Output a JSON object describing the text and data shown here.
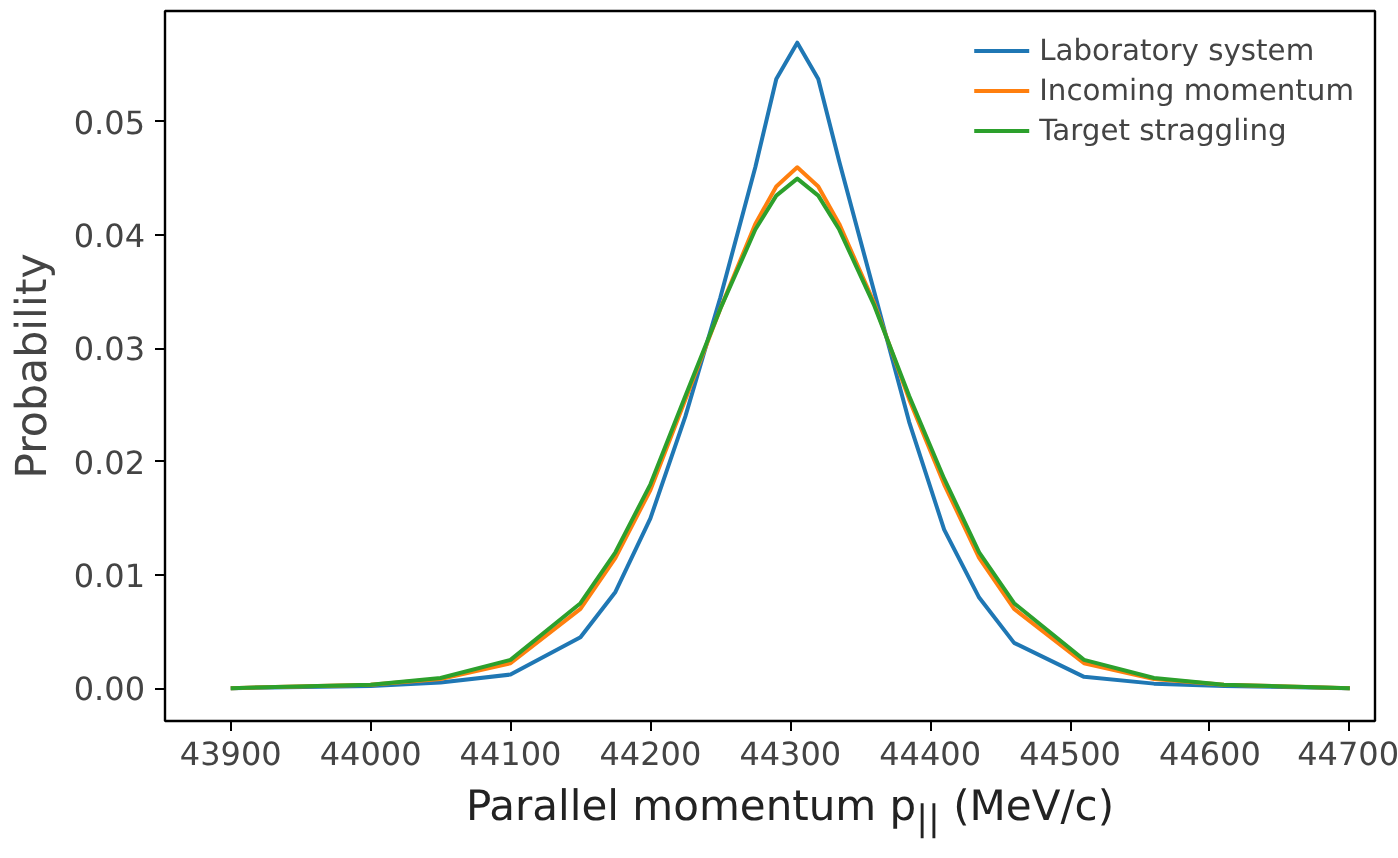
{
  "chart_data": {
    "type": "line",
    "xlabel": "Parallel momentum p$_{||}$ (MeV/c)",
    "ylabel": "Probability",
    "x": [
      43900,
      44000,
      44050,
      44100,
      44150,
      44175,
      44200,
      44225,
      44250,
      44275,
      44290,
      44305,
      44320,
      44335,
      44360,
      44385,
      44410,
      44435,
      44460,
      44510,
      44560,
      44610,
      44700
    ],
    "series": [
      {
        "name": "Laboratory system",
        "color": "#1f77b4",
        "values": [
          0.0,
          0.0002,
          0.0005,
          0.0012,
          0.0045,
          0.0085,
          0.015,
          0.024,
          0.0345,
          0.046,
          0.0538,
          0.057,
          0.0538,
          0.0465,
          0.035,
          0.0235,
          0.014,
          0.008,
          0.004,
          0.001,
          0.0004,
          0.0002,
          0.0
        ]
      },
      {
        "name": "Incoming momentum",
        "color": "#ff7f0e",
        "values": [
          0.0,
          0.0003,
          0.0008,
          0.0022,
          0.007,
          0.0115,
          0.0175,
          0.0255,
          0.0335,
          0.041,
          0.0443,
          0.046,
          0.0443,
          0.041,
          0.034,
          0.0255,
          0.018,
          0.0115,
          0.007,
          0.0022,
          0.0008,
          0.0003,
          0.0
        ]
      },
      {
        "name": "Target straggling",
        "color": "#2ca02c",
        "values": [
          0.0,
          0.0003,
          0.0009,
          0.0025,
          0.0075,
          0.012,
          0.018,
          0.0258,
          0.0335,
          0.0405,
          0.0435,
          0.045,
          0.0435,
          0.0405,
          0.0338,
          0.0258,
          0.0185,
          0.012,
          0.0075,
          0.0025,
          0.0009,
          0.0003,
          0.0
        ]
      }
    ],
    "xlim": [
      43853,
      44718
    ],
    "ylim": [
      -0.0029,
      0.0598
    ],
    "xticks": [
      43900,
      44000,
      44100,
      44200,
      44300,
      44400,
      44500,
      44600,
      44700
    ],
    "yticks": [
      {
        "value": 0,
        "label": "0.00"
      },
      {
        "value": 0.01,
        "label": "0.01"
      },
      {
        "value": 0.02,
        "label": "0.02"
      },
      {
        "value": 0.03,
        "label": "0.03"
      },
      {
        "value": 0.04,
        "label": "0.04"
      },
      {
        "value": 0.05,
        "label": "0.05"
      }
    ],
    "grid": false,
    "legend": "top right",
    "line_style": "solid",
    "marker": "none"
  }
}
